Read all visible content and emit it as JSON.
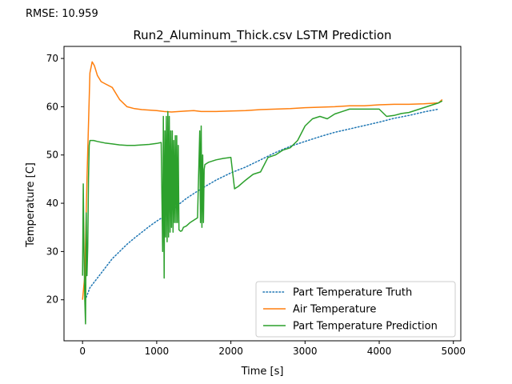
{
  "annotation": "RMSE: 10.959",
  "chart_data": {
    "type": "line",
    "title": "Run2_Aluminum_Thick.csv LSTM Prediction",
    "xlabel": "Time [s]",
    "ylabel": "Temperature [C]",
    "xlim": [
      -250,
      5100
    ],
    "ylim": [
      11.5,
      72.5
    ],
    "xticks": [
      0,
      1000,
      2000,
      3000,
      4000,
      5000
    ],
    "yticks": [
      20,
      30,
      40,
      50,
      60,
      70
    ],
    "grid": false,
    "legend_position": "lower-right",
    "series": [
      {
        "name": "Part Temperature Truth",
        "color": "#1f77b4",
        "style": "dotted",
        "x": [
          50,
          100,
          200,
          300,
          400,
          500,
          600,
          700,
          800,
          900,
          1000,
          1100,
          1200,
          1300,
          1400,
          1500,
          1600,
          1800,
          2000,
          2200,
          2400,
          2600,
          2800,
          3000,
          3200,
          3400,
          3600,
          3800,
          4000,
          4200,
          4400,
          4600,
          4800
        ],
        "y": [
          20.5,
          22.5,
          24.5,
          26.5,
          28.5,
          30.0,
          31.5,
          32.8,
          34.0,
          35.2,
          36.3,
          37.3,
          38.5,
          39.8,
          41.0,
          42.0,
          43.0,
          44.8,
          46.3,
          47.5,
          49.0,
          50.5,
          51.8,
          52.8,
          53.8,
          54.7,
          55.4,
          56.1,
          56.8,
          57.6,
          58.2,
          58.9,
          59.5
        ]
      },
      {
        "name": "Air Temperature",
        "color": "#ff7f0e",
        "style": "solid",
        "x": [
          0,
          30,
          60,
          100,
          130,
          160,
          200,
          250,
          300,
          400,
          500,
          600,
          700,
          800,
          900,
          1000,
          1100,
          1200,
          1300,
          1400,
          1500,
          1600,
          1800,
          2000,
          2200,
          2400,
          2600,
          2800,
          3000,
          3200,
          3400,
          3600,
          3800,
          4000,
          4200,
          4400,
          4600,
          4800,
          4850
        ],
        "y": [
          20,
          25,
          45,
          67,
          69.3,
          68.5,
          66.5,
          65.2,
          64.8,
          64.0,
          61.5,
          60.0,
          59.6,
          59.4,
          59.3,
          59.2,
          59.0,
          58.9,
          59.0,
          59.1,
          59.2,
          59.0,
          59.0,
          59.1,
          59.2,
          59.4,
          59.5,
          59.6,
          59.8,
          59.9,
          60.0,
          60.2,
          60.2,
          60.4,
          60.5,
          60.5,
          60.6,
          60.8,
          61.5
        ]
      },
      {
        "name": "Part Temperature Prediction",
        "color": "#2ca02c",
        "style": "solid",
        "x": [
          0,
          10,
          20,
          30,
          40,
          50,
          60,
          70,
          80,
          90,
          100,
          150,
          200,
          300,
          400,
          500,
          600,
          700,
          800,
          900,
          1000,
          1060,
          1080,
          1090,
          1100,
          1110,
          1120,
          1130,
          1140,
          1150,
          1160,
          1170,
          1180,
          1190,
          1200,
          1210,
          1220,
          1230,
          1240,
          1250,
          1260,
          1270,
          1280,
          1290,
          1300,
          1320,
          1340,
          1360,
          1400,
          1450,
          1500,
          1550,
          1580,
          1590,
          1600,
          1610,
          1620,
          1630,
          1640,
          1650,
          1700,
          1800,
          1900,
          2000,
          2050,
          2100,
          2200,
          2300,
          2400,
          2500,
          2600,
          2700,
          2800,
          2900,
          3000,
          3100,
          3200,
          3300,
          3400,
          3500,
          3600,
          3700,
          3800,
          3900,
          4000,
          4100,
          4200,
          4300,
          4400,
          4500,
          4600,
          4700,
          4800,
          4850
        ],
        "y": [
          25,
          44,
          30,
          20,
          15,
          38,
          25,
          31,
          45,
          52,
          53,
          53,
          52.8,
          52.5,
          52.3,
          52.1,
          52.0,
          52.0,
          52.1,
          52.2,
          52.4,
          52.6,
          30,
          58,
          24.5,
          55,
          33,
          58,
          32,
          59,
          33,
          58,
          34,
          55,
          35,
          55,
          34,
          53,
          36,
          54,
          36,
          54,
          36,
          52,
          34.5,
          34.2,
          34.3,
          35,
          35.3,
          36,
          36.5,
          37,
          55,
          36,
          56,
          35,
          50,
          36,
          47,
          48,
          48.5,
          49.0,
          49.3,
          49.5,
          43,
          43.5,
          44.8,
          46.0,
          46.5,
          49.5,
          50.0,
          51.0,
          51.5,
          53.0,
          56.0,
          57.5,
          58.0,
          57.5,
          58.5,
          59.0,
          59.5,
          59.5,
          59.5,
          59.5,
          59.5,
          58.0,
          58.2,
          58.6,
          58.8,
          59.3,
          59.8,
          60.3,
          60.8,
          61.2
        ]
      }
    ]
  }
}
